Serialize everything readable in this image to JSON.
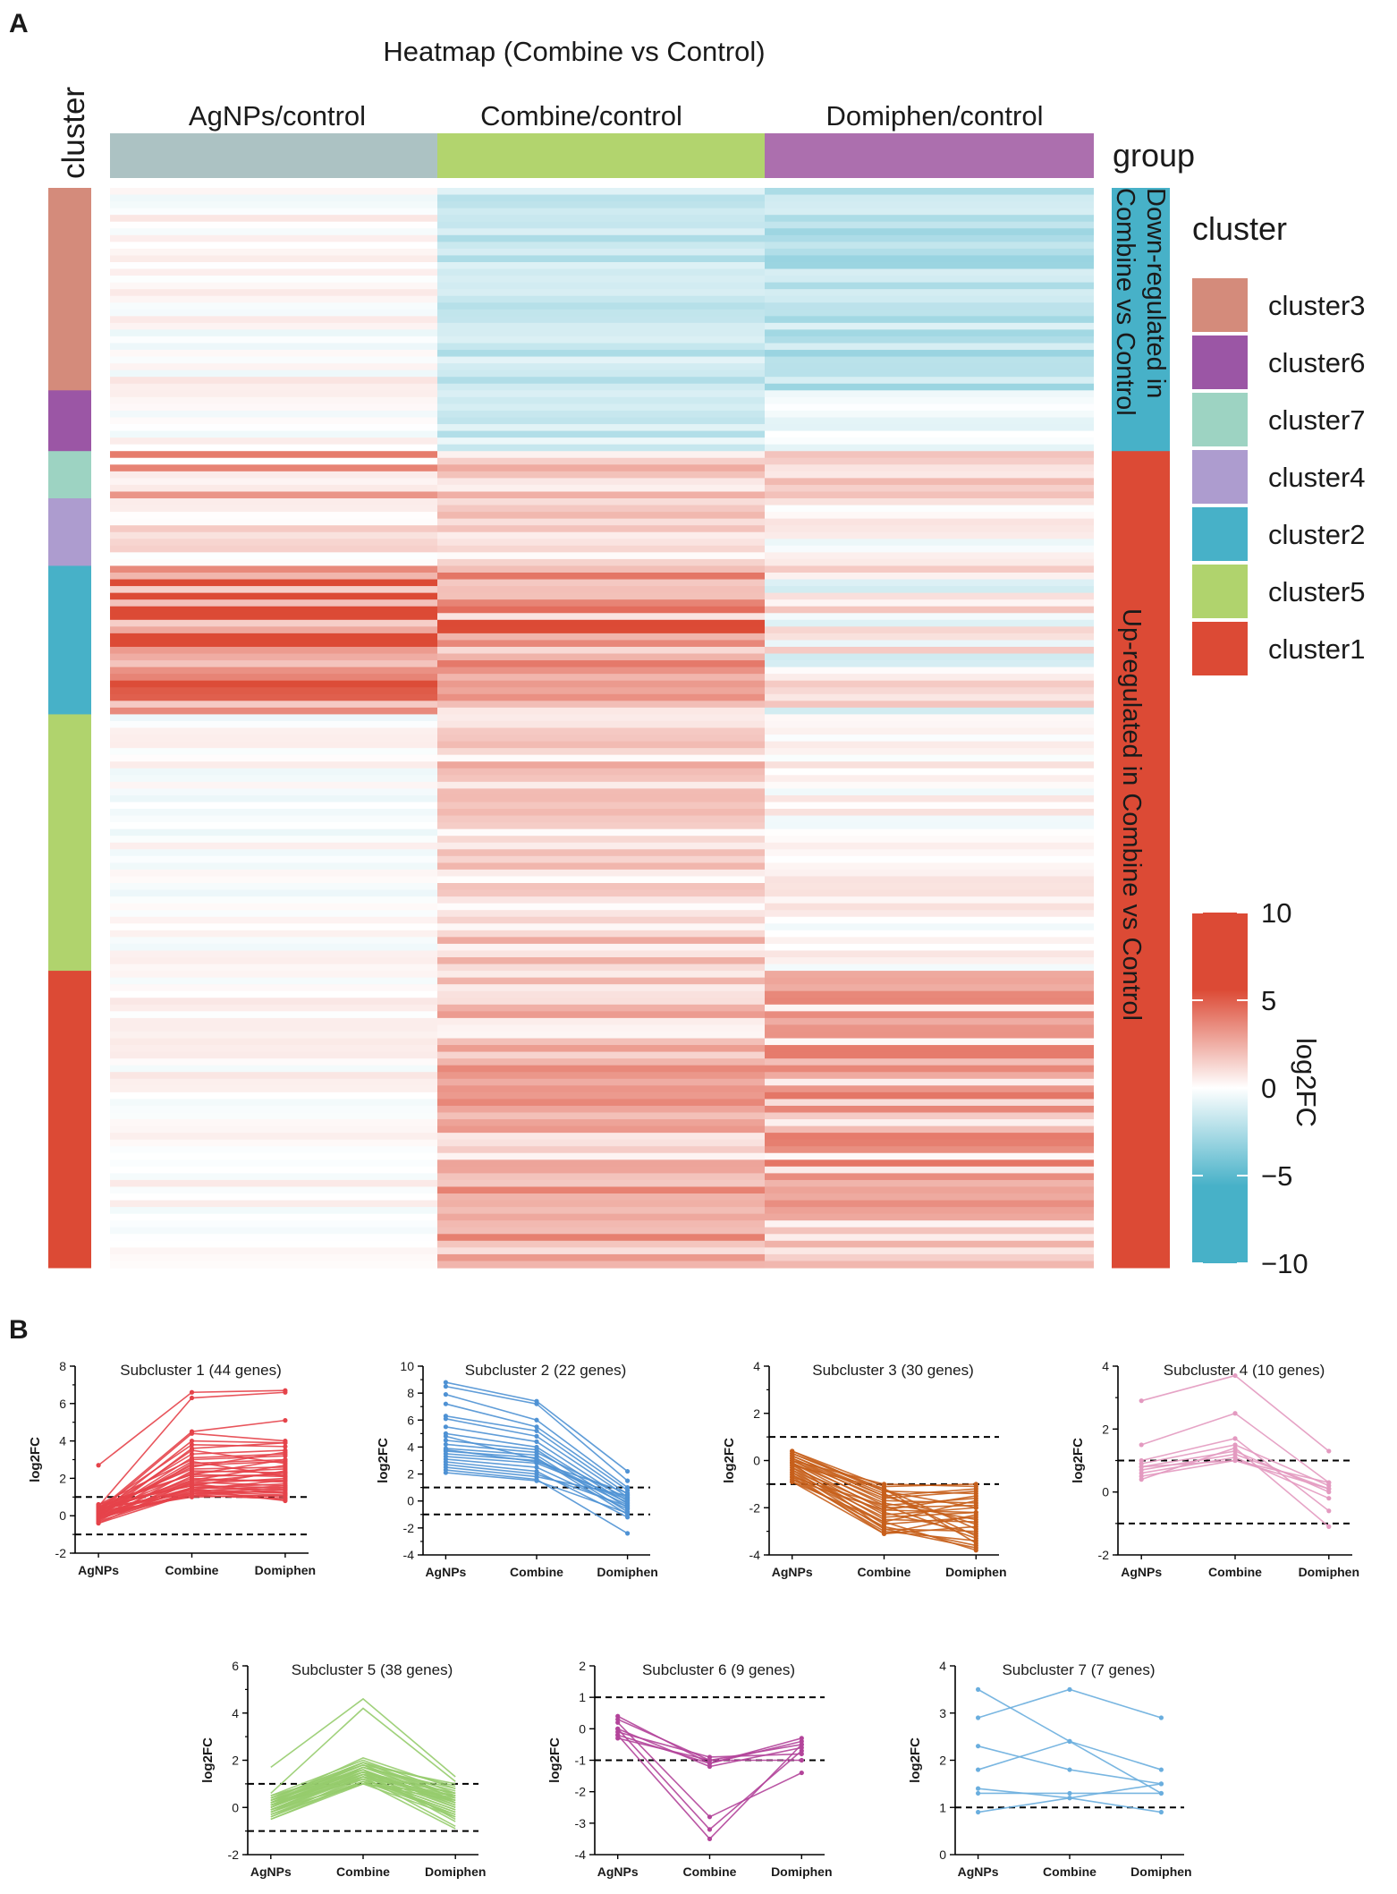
{
  "panel_labels": {
    "a": "A",
    "b": "B"
  },
  "heatmap": {
    "title": "Heatmap (Combine vs Control)",
    "columns": [
      "AgNPs/control",
      "Combine/control",
      "Domiphen/control"
    ],
    "group_title": "group",
    "cluster_title": "cluster",
    "group_labels": {
      "down": [
        "Down-regulated in",
        "Combine vs Control"
      ],
      "up": "Up-regulated in Combine vs Control"
    },
    "legend": {
      "title": "cluster",
      "items": [
        {
          "label": "cluster3",
          "color": "#d48b7b"
        },
        {
          "label": "cluster6",
          "color": "#9b56a5"
        },
        {
          "label": "cluster7",
          "color": "#9dd3c2"
        },
        {
          "label": "cluster4",
          "color": "#ad9ccf"
        },
        {
          "label": "cluster2",
          "color": "#47b1c8"
        },
        {
          "label": "cluster5",
          "color": "#b0d36d"
        },
        {
          "label": "cluster1",
          "color": "#dc4a35"
        }
      ]
    },
    "colorbar": {
      "title": "log2FC",
      "ticks": [
        "10",
        "5",
        "0",
        "−5",
        "−10"
      ],
      "range": [
        -10,
        10
      ]
    },
    "colors": {
      "col_agnps": "#acc2c3",
      "col_combine": "#b2d46e",
      "col_domiphen": "#ac6fae",
      "down": "#47b1c8",
      "up": "#dc4a35",
      "high": "#dc4a35",
      "low": "#47b1c8"
    },
    "clusters_sequence": [
      {
        "name": "cluster3",
        "genes": 30,
        "color": "#d48b7b"
      },
      {
        "name": "cluster6",
        "genes": 9,
        "color": "#9b56a5"
      },
      {
        "name": "cluster7",
        "genes": 7,
        "color": "#9dd3c2"
      },
      {
        "name": "cluster4",
        "genes": 10,
        "color": "#ad9ccf"
      },
      {
        "name": "cluster2",
        "genes": 22,
        "color": "#47b1c8"
      },
      {
        "name": "cluster5",
        "genes": 38,
        "color": "#b0d36d"
      },
      {
        "name": "cluster1",
        "genes": 44,
        "color": "#dc4a35"
      }
    ],
    "group_sequence": [
      {
        "name": "down",
        "genes": 39
      },
      {
        "name": "up",
        "genes": 121
      }
    ]
  },
  "chart_data": [
    {
      "type": "line",
      "title": "Subcluster 1 (44 genes)",
      "categories": [
        "AgNPs",
        "Combine",
        "Domiphen"
      ],
      "ylabel": "log2FC",
      "ylim": [
        -2,
        8
      ],
      "yticks": [
        -2,
        0,
        2,
        4,
        6,
        8
      ],
      "minor": 1,
      "thresholds": [
        1,
        -1
      ],
      "color": "#e5434a",
      "points": true,
      "series": [
        [
          2.7,
          6.6,
          6.7
        ],
        [
          0.5,
          6.3,
          6.6
        ],
        [
          0.3,
          4.5,
          5.1
        ],
        [
          0.2,
          4.4,
          4.0
        ],
        [
          0.1,
          4.0,
          3.9
        ],
        [
          0.4,
          3.8,
          3.7
        ],
        [
          -0.1,
          3.6,
          3.9
        ],
        [
          0.3,
          3.3,
          3.5
        ],
        [
          0.0,
          3.1,
          3.3
        ],
        [
          0.6,
          3.0,
          3.2
        ],
        [
          -0.2,
          2.8,
          3.0
        ],
        [
          0.2,
          2.7,
          2.9
        ],
        [
          0.4,
          2.5,
          2.6
        ],
        [
          -0.3,
          2.4,
          2.3
        ],
        [
          0.1,
          2.3,
          2.5
        ],
        [
          0.5,
          2.2,
          2.1
        ],
        [
          -0.1,
          2.1,
          2.2
        ],
        [
          0.2,
          2.0,
          1.8
        ],
        [
          0.3,
          1.9,
          1.9
        ],
        [
          -0.4,
          1.8,
          1.6
        ],
        [
          0.0,
          1.7,
          2.0
        ],
        [
          0.6,
          1.6,
          1.5
        ],
        [
          0.1,
          1.5,
          1.7
        ],
        [
          -0.2,
          1.5,
          1.4
        ],
        [
          0.3,
          1.4,
          1.2
        ],
        [
          0.2,
          1.3,
          1.6
        ],
        [
          -0.3,
          1.3,
          1.1
        ],
        [
          0.4,
          1.2,
          1.3
        ],
        [
          0.0,
          1.2,
          1.0
        ],
        [
          0.1,
          1.1,
          1.4
        ],
        [
          -0.1,
          1.1,
          0.9
        ],
        [
          0.5,
          1.6,
          2.4
        ],
        [
          0.2,
          2.6,
          3.4
        ],
        [
          -0.2,
          1.9,
          2.7
        ],
        [
          0.3,
          1.4,
          0.8
        ],
        [
          0.0,
          2.9,
          2.1
        ],
        [
          0.4,
          1.7,
          1.2
        ],
        [
          -0.4,
          1.2,
          1.5
        ],
        [
          0.1,
          3.5,
          2.8
        ],
        [
          0.2,
          1.0,
          1.1
        ],
        [
          0.6,
          2.2,
          3.0
        ],
        [
          -0.1,
          1.4,
          1.9
        ],
        [
          0.3,
          1.8,
          2.3
        ],
        [
          0.0,
          1.1,
          0.9
        ]
      ]
    },
    {
      "type": "line",
      "title": "Subcluster 2 (22 genes)",
      "categories": [
        "AgNPs",
        "Combine",
        "Domiphen"
      ],
      "ylabel": "log2FC",
      "ylim": [
        -4,
        10
      ],
      "yticks": [
        -4,
        -2,
        0,
        2,
        4,
        6,
        8,
        10
      ],
      "minor": 1,
      "thresholds": [
        1,
        -1
      ],
      "color": "#4f92d4",
      "points": true,
      "series": [
        [
          8.8,
          7.4,
          2.2
        ],
        [
          8.5,
          7.2,
          1.5
        ],
        [
          7.9,
          6.0,
          1.0
        ],
        [
          7.2,
          5.5,
          0.8
        ],
        [
          6.3,
          5.2,
          0.5
        ],
        [
          6.1,
          4.8,
          0.3
        ],
        [
          5.5,
          4.4,
          0.0
        ],
        [
          5.0,
          4.0,
          -0.2
        ],
        [
          4.5,
          3.8,
          -0.5
        ],
        [
          4.2,
          3.6,
          0.2
        ],
        [
          3.9,
          3.4,
          -0.8
        ],
        [
          3.7,
          3.2,
          -1.0
        ],
        [
          3.5,
          3.0,
          -0.3
        ],
        [
          3.3,
          2.8,
          0.1
        ],
        [
          3.1,
          2.5,
          -0.6
        ],
        [
          2.9,
          2.2,
          -1.2
        ],
        [
          2.7,
          2.0,
          -0.4
        ],
        [
          2.5,
          1.8,
          0.4
        ],
        [
          2.3,
          1.6,
          -2.4
        ],
        [
          2.1,
          1.5,
          -0.9
        ],
        [
          3.8,
          2.9,
          0.6
        ],
        [
          4.8,
          3.1,
          -0.1
        ]
      ]
    },
    {
      "type": "line",
      "title": "Subcluster 3 (30 genes)",
      "categories": [
        "AgNPs",
        "Combine",
        "Domiphen"
      ],
      "ylabel": "log2FC",
      "ylim": [
        -4,
        4
      ],
      "yticks": [
        -4,
        -2,
        0,
        2,
        4
      ],
      "minor": 1,
      "thresholds": [
        1,
        -1
      ],
      "color": "#c75f1b",
      "points": true,
      "series": [
        [
          0.4,
          -1.1,
          -1.0
        ],
        [
          0.3,
          -1.3,
          -1.4
        ],
        [
          0.2,
          -1.5,
          -1.2
        ],
        [
          0.1,
          -1.7,
          -1.8
        ],
        [
          0.0,
          -1.9,
          -1.6
        ],
        [
          -0.1,
          -2.1,
          -2.2
        ],
        [
          -0.2,
          -2.3,
          -2.0
        ],
        [
          -0.3,
          -2.5,
          -2.6
        ],
        [
          -0.4,
          -2.7,
          -2.4
        ],
        [
          -0.5,
          -2.9,
          -3.0
        ],
        [
          -0.6,
          -3.1,
          -2.8
        ],
        [
          -0.7,
          -3.0,
          -3.4
        ],
        [
          -0.8,
          -2.8,
          -3.6
        ],
        [
          -0.9,
          -2.6,
          -3.8
        ],
        [
          0.3,
          -1.2,
          -2.9
        ],
        [
          0.2,
          -1.4,
          -3.2
        ],
        [
          0.0,
          -1.6,
          -1.3
        ],
        [
          -0.1,
          -1.8,
          -2.5
        ],
        [
          -0.3,
          -2.0,
          -1.9
        ],
        [
          -0.4,
          -2.2,
          -3.1
        ],
        [
          -0.5,
          -2.4,
          -2.2
        ],
        [
          -0.6,
          -2.6,
          -1.7
        ],
        [
          -0.2,
          -1.2,
          -3.5
        ],
        [
          0.1,
          -1.5,
          -2.7
        ],
        [
          -0.7,
          -1.9,
          -3.3
        ],
        [
          -0.8,
          -2.1,
          -1.5
        ],
        [
          0.4,
          -1.3,
          -2.0
        ],
        [
          -0.1,
          -2.9,
          -3.7
        ],
        [
          -0.9,
          -3.1,
          -2.3
        ],
        [
          0.0,
          -1.0,
          -1.1
        ]
      ]
    },
    {
      "type": "line",
      "title": "Subcluster 4 (10 genes)",
      "categories": [
        "AgNPs",
        "Combine",
        "Domiphen"
      ],
      "ylabel": "log2FC",
      "ylim": [
        -2,
        4
      ],
      "yticks": [
        -2,
        0,
        2,
        4
      ],
      "minor": 1,
      "thresholds": [
        1,
        -1
      ],
      "color": "#e39ac0",
      "points": true,
      "series": [
        [
          2.9,
          3.7,
          1.3
        ],
        [
          1.5,
          2.5,
          0.3
        ],
        [
          1.0,
          1.7,
          -0.6
        ],
        [
          0.9,
          1.5,
          0.2
        ],
        [
          0.8,
          1.3,
          0.0
        ],
        [
          0.7,
          1.2,
          0.1
        ],
        [
          0.6,
          1.1,
          -0.2
        ],
        [
          0.5,
          1.0,
          0.3
        ],
        [
          0.4,
          1.4,
          -1.1
        ],
        [
          0.8,
          1.0,
          0.1
        ]
      ]
    },
    {
      "type": "line",
      "title": "Subcluster 5 (38 genes)",
      "categories": [
        "AgNPs",
        "Combine",
        "Domiphen"
      ],
      "ylabel": "log2FC",
      "ylim": [
        -2,
        6
      ],
      "yticks": [
        -2,
        0,
        2,
        4,
        6
      ],
      "minor": 1,
      "thresholds": [
        1,
        -1
      ],
      "color": "#96cc6d",
      "points": false,
      "series": [
        [
          1.7,
          4.6,
          1.3
        ],
        [
          0.6,
          4.2,
          1.1
        ],
        [
          0.5,
          2.0,
          0.6
        ],
        [
          0.4,
          1.9,
          0.5
        ],
        [
          0.3,
          1.8,
          0.4
        ],
        [
          0.2,
          1.7,
          0.3
        ],
        [
          0.1,
          1.6,
          0.2
        ],
        [
          0.0,
          1.5,
          0.1
        ],
        [
          -0.1,
          1.4,
          0.0
        ],
        [
          -0.2,
          1.3,
          -0.1
        ],
        [
          -0.3,
          1.2,
          -0.2
        ],
        [
          -0.4,
          1.1,
          -0.3
        ],
        [
          -0.5,
          1.0,
          -0.4
        ],
        [
          0.3,
          2.1,
          0.8
        ],
        [
          0.2,
          1.9,
          0.9
        ],
        [
          0.1,
          1.7,
          0.7
        ],
        [
          0.0,
          1.5,
          -0.6
        ],
        [
          -0.1,
          1.3,
          0.5
        ],
        [
          -0.2,
          1.1,
          0.4
        ],
        [
          0.4,
          1.8,
          0.2
        ],
        [
          0.5,
          1.6,
          -0.5
        ],
        [
          0.2,
          1.4,
          0.6
        ],
        [
          0.1,
          1.2,
          -0.2
        ],
        [
          -0.3,
          1.0,
          0.3
        ],
        [
          -0.4,
          1.3,
          -0.8
        ],
        [
          0.3,
          1.6,
          0.0
        ],
        [
          0.2,
          1.8,
          1.0
        ],
        [
          0.0,
          1.7,
          0.8
        ],
        [
          -0.1,
          1.5,
          0.6
        ],
        [
          -0.2,
          1.4,
          0.2
        ],
        [
          0.1,
          1.2,
          -0.3
        ],
        [
          0.4,
          1.9,
          0.4
        ],
        [
          -0.5,
          1.1,
          -0.9
        ],
        [
          0.0,
          1.6,
          0.1
        ],
        [
          0.2,
          1.3,
          -0.1
        ],
        [
          -0.1,
          1.0,
          0.5
        ],
        [
          0.3,
          1.5,
          0.3
        ],
        [
          0.1,
          1.4,
          -0.4
        ]
      ]
    },
    {
      "type": "line",
      "title": "Subcluster 6 (9 genes)",
      "categories": [
        "AgNPs",
        "Combine",
        "Domiphen"
      ],
      "ylabel": "log2FC",
      "ylim": [
        -4,
        2
      ],
      "yticks": [
        -4,
        -3,
        -2,
        -1,
        0,
        1,
        2
      ],
      "minor": 0,
      "thresholds": [
        1,
        -1
      ],
      "color": "#b3449a",
      "points": true,
      "series": [
        [
          0.4,
          -1.1,
          -0.3
        ],
        [
          0.3,
          -1.0,
          -0.5
        ],
        [
          0.0,
          -1.2,
          -0.6
        ],
        [
          -0.1,
          -0.9,
          -0.8
        ],
        [
          -0.2,
          -1.1,
          -0.4
        ],
        [
          -0.3,
          -1.0,
          -1.0
        ],
        [
          0.2,
          -2.8,
          -1.4
        ],
        [
          0.0,
          -3.2,
          -0.7
        ],
        [
          -0.2,
          -3.5,
          -0.5
        ]
      ]
    },
    {
      "type": "line",
      "title": "Subcluster 7 (7 genes)",
      "categories": [
        "AgNPs",
        "Combine",
        "Domiphen"
      ],
      "ylabel": "log2FC",
      "ylim": [
        0,
        4
      ],
      "yticks": [
        0,
        1,
        2,
        3,
        4
      ],
      "minor": 0,
      "thresholds": [
        1
      ],
      "color": "#6aaede",
      "points": true,
      "series": [
        [
          3.5,
          2.4,
          1.3
        ],
        [
          2.9,
          3.5,
          2.9
        ],
        [
          2.3,
          1.8,
          1.5
        ],
        [
          1.8,
          2.4,
          1.8
        ],
        [
          1.4,
          1.2,
          1.5
        ],
        [
          1.3,
          1.3,
          1.3
        ],
        [
          0.9,
          1.2,
          0.9
        ]
      ]
    }
  ]
}
